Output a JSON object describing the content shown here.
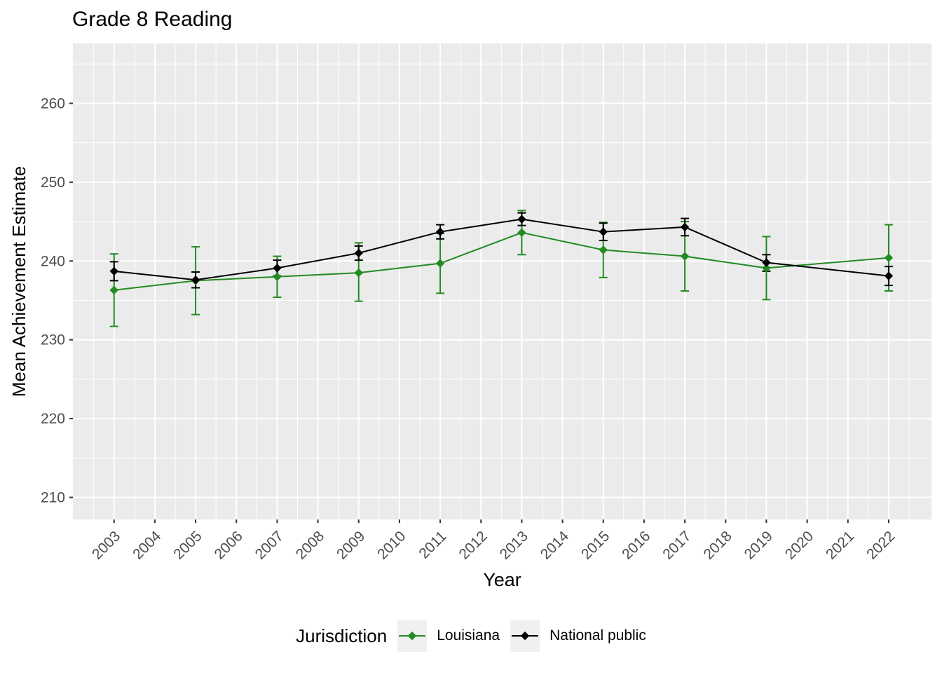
{
  "title": "Grade 8 Reading",
  "axes": {
    "x_label": "Year",
    "y_label": "Mean Achievement Estimate"
  },
  "legend": {
    "title": "Jurisdiction",
    "items": [
      {
        "label": "Louisiana",
        "color": "#228B22"
      },
      {
        "label": "National public",
        "color": "#000000"
      }
    ]
  },
  "colors": {
    "panel_bg": "#EBEBEB",
    "grid": "#FFFFFF",
    "tick_text": "#4D4D4D",
    "axis_tick": "#333333",
    "text": "#000000",
    "legend_key_bg": "#F0F0F0",
    "louisiana": "#228B22",
    "national_public": "#000000"
  },
  "chart_data": {
    "type": "line",
    "title": "Grade 8 Reading",
    "xlabel": "Year",
    "ylabel": "Mean Achievement Estimate",
    "grid": true,
    "legend_position": "bottom",
    "marker": "diamond",
    "error_bars": true,
    "xlim": [
      2001.99,
      2023.05
    ],
    "ylim": [
      207.2,
      267.6
    ],
    "x_ticks": [
      2003,
      2004,
      2005,
      2006,
      2007,
      2008,
      2009,
      2010,
      2011,
      2012,
      2013,
      2014,
      2015,
      2016,
      2017,
      2018,
      2019,
      2020,
      2021,
      2022
    ],
    "y_ticks": [
      210,
      220,
      230,
      240,
      250,
      260
    ],
    "x": [
      2003,
      2005,
      2007,
      2009,
      2011,
      2013,
      2015,
      2017,
      2019,
      2022
    ],
    "series": [
      {
        "name": "Louisiana",
        "color": "#228B22",
        "values": [
          236.3,
          237.5,
          238.0,
          238.5,
          239.7,
          243.6,
          241.4,
          240.6,
          239.1,
          240.4
        ],
        "ci_low": [
          231.7,
          233.2,
          235.4,
          234.9,
          235.9,
          240.8,
          237.9,
          236.2,
          235.1,
          236.2
        ],
        "ci_high": [
          240.9,
          241.8,
          240.6,
          242.3,
          243.5,
          246.4,
          244.9,
          245.0,
          243.1,
          244.6
        ]
      },
      {
        "name": "National public",
        "color": "#000000",
        "values": [
          238.7,
          237.6,
          239.1,
          241.0,
          243.7,
          245.3,
          243.7,
          244.3,
          239.8,
          238.1
        ],
        "ci_low": [
          237.5,
          236.6,
          238.1,
          240.1,
          242.8,
          244.5,
          242.6,
          243.2,
          238.7,
          236.9
        ],
        "ci_high": [
          239.9,
          238.6,
          240.1,
          241.9,
          244.6,
          246.1,
          244.8,
          245.4,
          240.8,
          239.3
        ]
      }
    ]
  }
}
